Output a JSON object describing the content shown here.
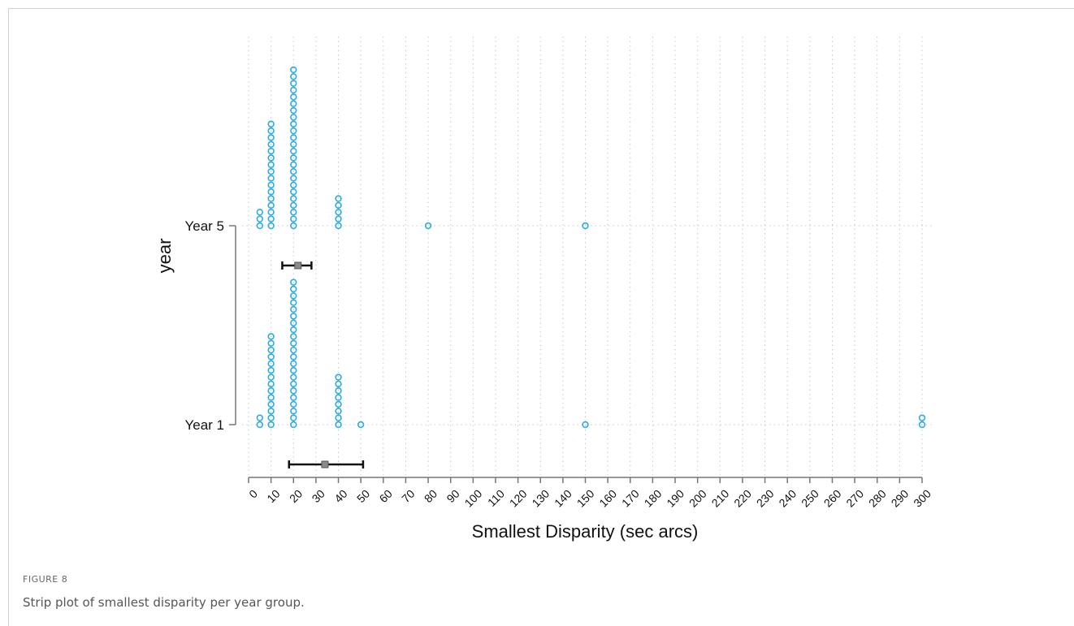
{
  "figure": {
    "label": "FIGURE 8",
    "caption": "Strip plot of smallest disparity per year group."
  },
  "chart_data": {
    "type": "scatter",
    "subtype": "strip",
    "xlabel": "Smallest Disparity (sec arcs)",
    "ylabel": "year",
    "xlim": [
      0,
      300
    ],
    "x_ticks": [
      0,
      10,
      20,
      30,
      40,
      50,
      60,
      70,
      80,
      90,
      100,
      110,
      120,
      130,
      140,
      150,
      160,
      170,
      180,
      190,
      200,
      210,
      220,
      230,
      240,
      250,
      260,
      270,
      280,
      290,
      300
    ],
    "x_tick_labels": [
      "0",
      "10",
      "20",
      "30",
      "40",
      "50",
      "60",
      "70",
      "80",
      "90",
      "100",
      "110",
      "120",
      "130",
      "140",
      "150",
      "160",
      "170",
      "180",
      "190",
      "200",
      "210",
      "220",
      "230",
      "240",
      "250",
      "260",
      "270",
      "280",
      "290",
      "300"
    ],
    "categories": [
      "Year 5",
      "Year 1"
    ],
    "grid": true,
    "marker_color": "#2bace2",
    "error_bar_color": "#111111",
    "mean_marker_color": "#8a8a8a",
    "series": [
      {
        "name": "Year 5",
        "points": [
          {
            "x": 5,
            "count": 3
          },
          {
            "x": 10,
            "count": 16
          },
          {
            "x": 20,
            "count": 24
          },
          {
            "x": 40,
            "count": 5
          },
          {
            "x": 80,
            "count": 1
          },
          {
            "x": 150,
            "count": 1
          }
        ],
        "mean": 22,
        "ci": [
          15,
          28
        ]
      },
      {
        "name": "Year 1",
        "points": [
          {
            "x": 5,
            "count": 2
          },
          {
            "x": 10,
            "count": 14
          },
          {
            "x": 20,
            "count": 22
          },
          {
            "x": 40,
            "count": 8
          },
          {
            "x": 50,
            "count": 1
          },
          {
            "x": 150,
            "count": 1
          },
          {
            "x": 300,
            "count": 2
          }
        ],
        "mean": 34,
        "ci": [
          18,
          51
        ]
      }
    ]
  }
}
